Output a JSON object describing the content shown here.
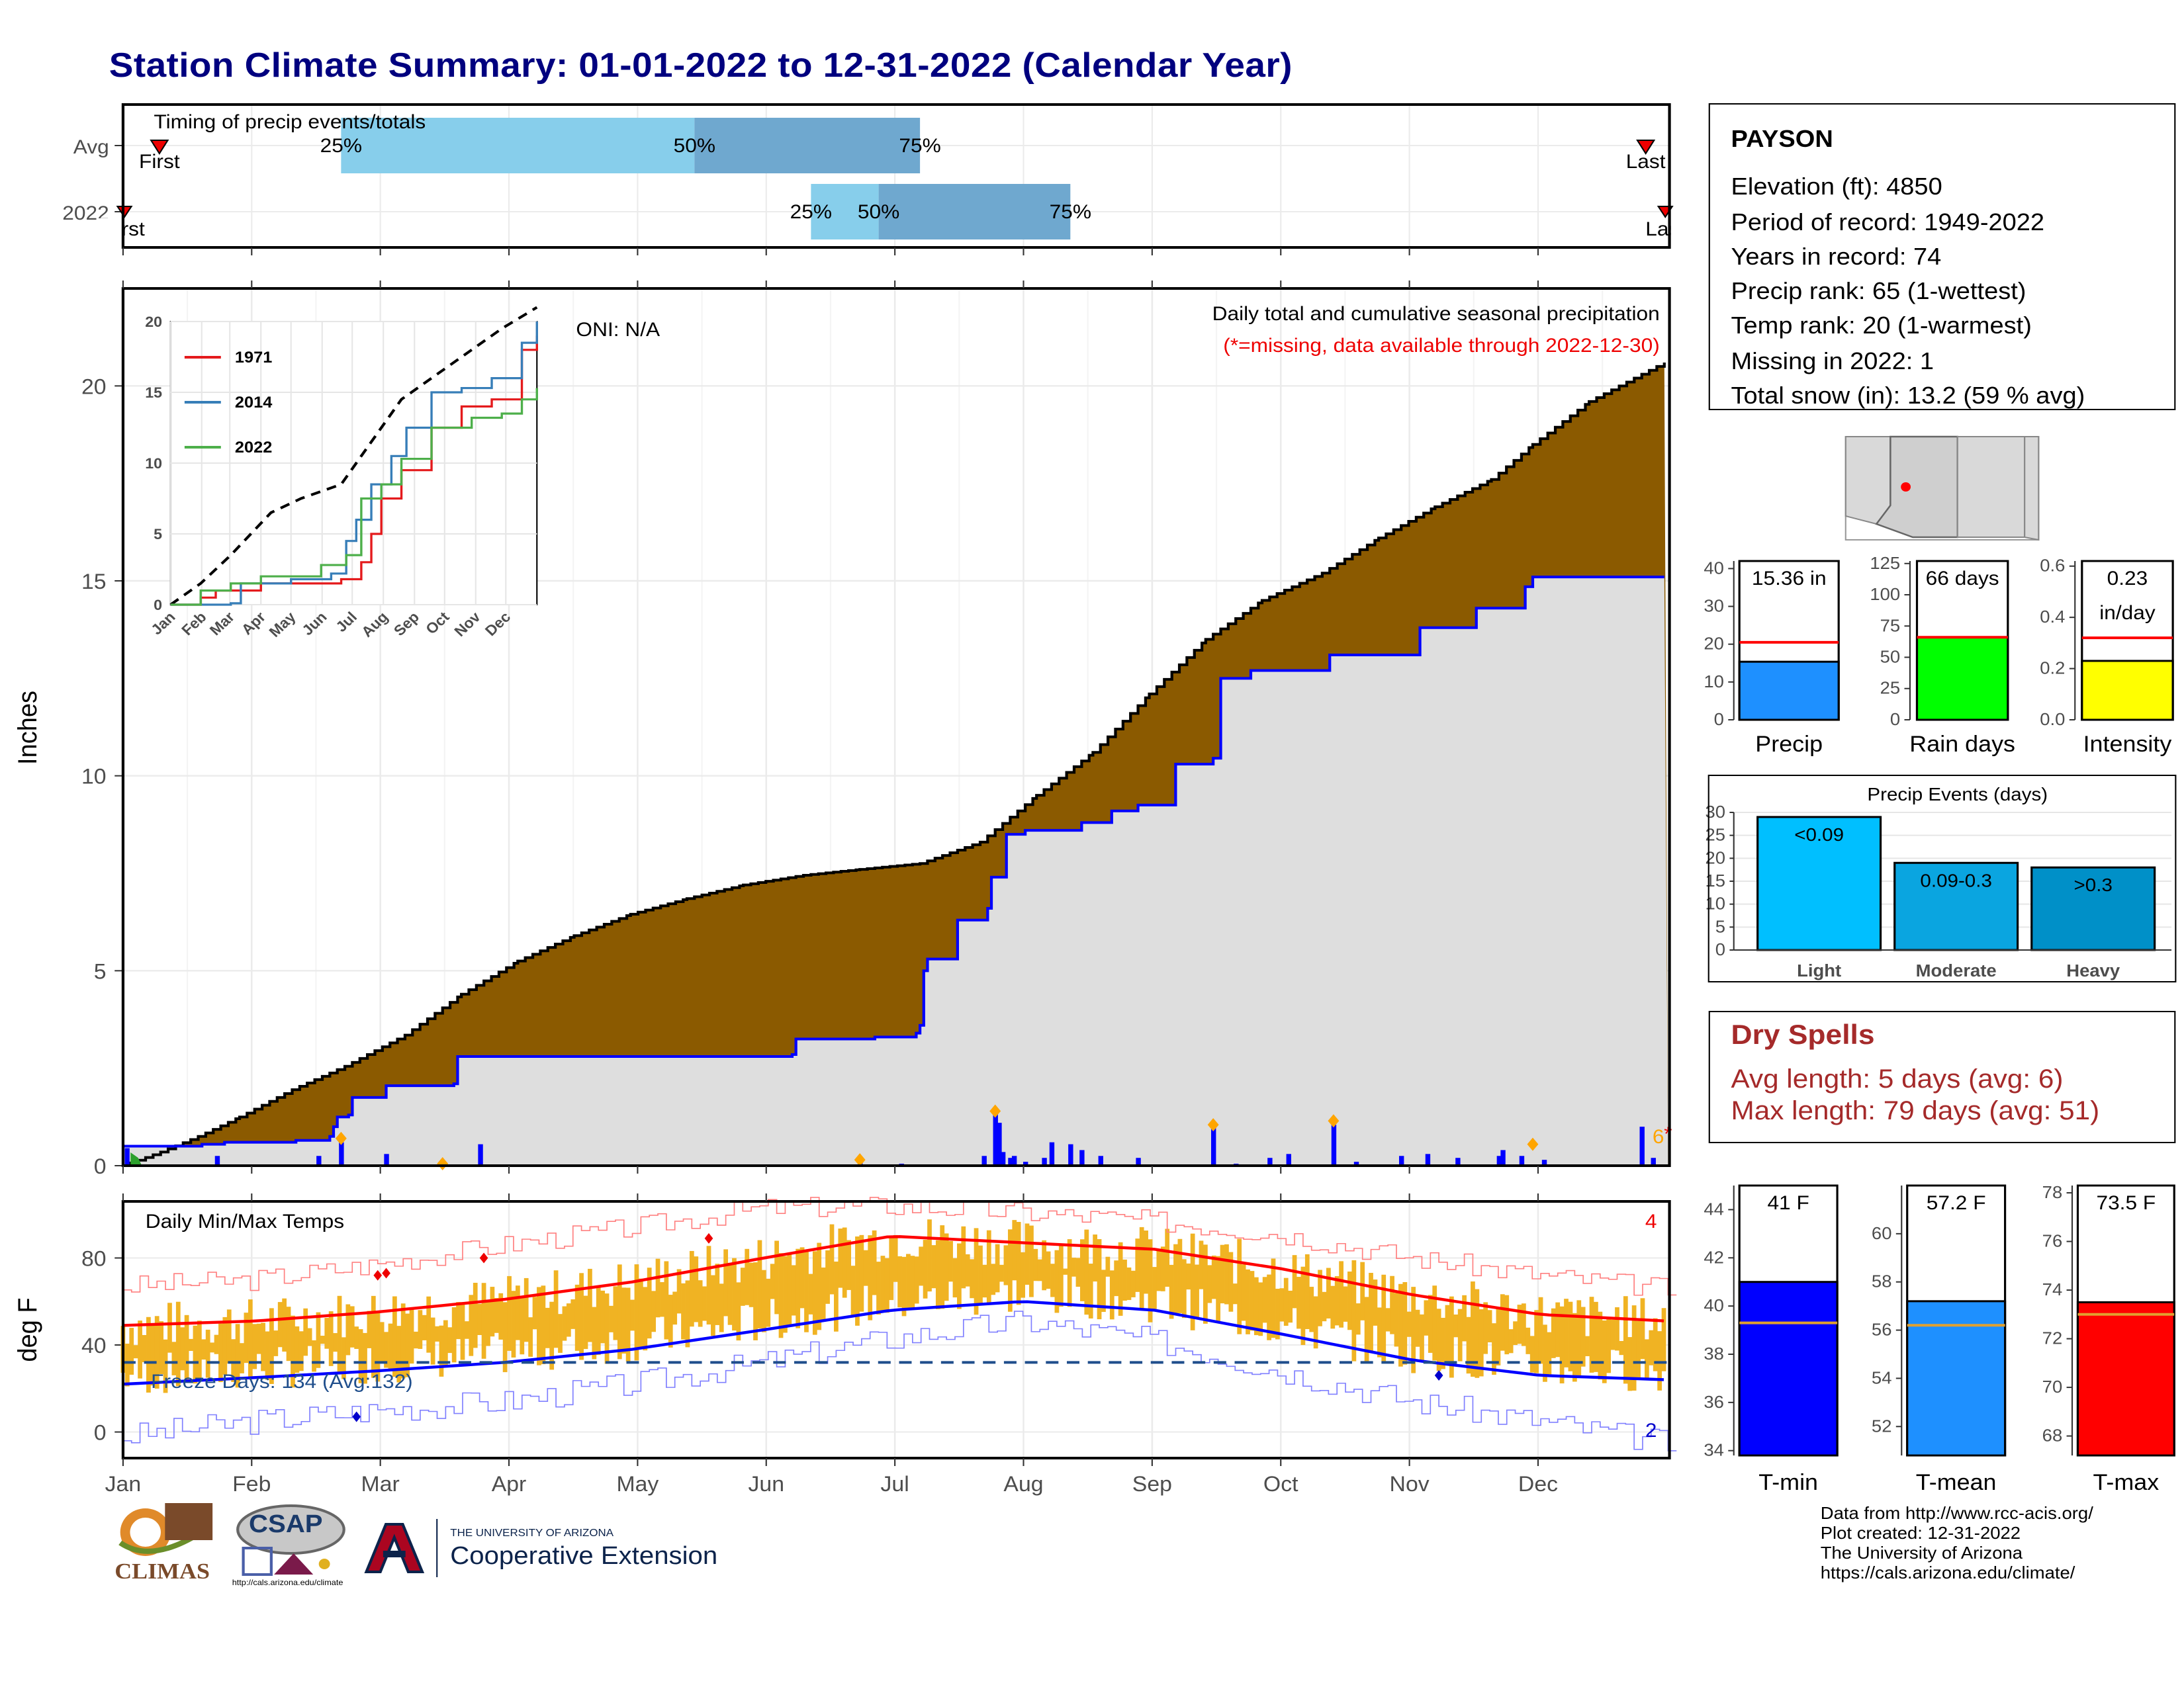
{
  "page_title": "Station Climate Summary: 01-01-2022 to 12-31-2022 (Calendar Year)",
  "station": {
    "name": "PAYSON",
    "elevation": "Elevation (ft): 4850",
    "period": "Period of record: 1949-2022",
    "years": "Years in record: 74",
    "precip_rank": "Precip rank: 65 (1-wettest)",
    "temp_rank": "Temp rank: 20 (1-warmest)",
    "missing": "Missing in 2022: 1",
    "snow": "Total snow (in): 13.2 (59 % avg)"
  },
  "dry_spells": {
    "title": "Dry Spells",
    "avg": "Avg length: 5 days (avg: 6)",
    "max": "Max length: 79 days (avg: 51)"
  },
  "footer": {
    "line1": "Data from http://www.rcc-acis.org/",
    "line2": "Plot created: 12-31-2022",
    "line3": "The University of Arizona",
    "line4": "https://cals.arizona.edu/climate/"
  },
  "logos": {
    "climas": "CLIMAS",
    "csap": "CSAP",
    "csap_url": "http://cals.arizona.edu/climate",
    "ua_small": "THE UNIVERSITY OF ARIZONA",
    "ua_big": "Cooperative Extension"
  },
  "colors": {
    "accent": "#00007f",
    "brown": "#8b5a00",
    "gray_area": "#dedede",
    "blue_line": "#0000ff",
    "temp_bar": "#f0b323",
    "light_blue": "#87ceeb",
    "steel_blue": "#6fa8cf",
    "dry_spell_red": "#a52a2a"
  },
  "chart_data": [
    {
      "id": "timing",
      "type": "bar",
      "title": "Timing of precip events/totals",
      "rows": [
        {
          "label": "Avg",
          "first": "First",
          "last": "Last",
          "p25_day": 58,
          "p50_day": 152,
          "p75_day": 212
        },
        {
          "label": "2022",
          "first": "First",
          "last": "Last",
          "p25_day": 183,
          "p50_day": 201,
          "p75_day": 252
        }
      ],
      "pct_labels": [
        "25%",
        "50%",
        "75%"
      ]
    },
    {
      "id": "cumulative_precip",
      "type": "area",
      "title": "Daily total and cumulative seasonal precipitation",
      "subtitle": "(*=missing, data available through 2022-12-30)",
      "oni": "ONI: N/A",
      "ylabel": "Inches",
      "ylim": [
        0,
        22.5
      ],
      "yticks": [
        0,
        5,
        10,
        15,
        20
      ],
      "missing_marker": "6*",
      "avg_cumulative": [
        [
          0,
          0
        ],
        [
          10,
          0.35
        ],
        [
          20,
          0.75
        ],
        [
          31,
          1.25
        ],
        [
          45,
          1.95
        ],
        [
          59,
          2.55
        ],
        [
          75,
          3.35
        ],
        [
          90,
          4.4
        ],
        [
          105,
          5.25
        ],
        [
          120,
          5.9
        ],
        [
          135,
          6.45
        ],
        [
          150,
          6.85
        ],
        [
          165,
          7.2
        ],
        [
          181,
          7.45
        ],
        [
          196,
          7.6
        ],
        [
          212,
          7.75
        ],
        [
          228,
          8.3
        ],
        [
          243,
          9.5
        ],
        [
          258,
          10.6
        ],
        [
          273,
          12.1
        ],
        [
          288,
          13.5
        ],
        [
          303,
          14.5
        ],
        [
          319,
          15.2
        ],
        [
          334,
          16.1
        ],
        [
          349,
          16.9
        ],
        [
          364,
          17.6
        ],
        [
          375,
          18.5
        ],
        [
          390,
          19.6
        ],
        [
          410,
          20.6
        ]
      ],
      "obs_cumulative": [
        [
          0,
          0.5
        ],
        [
          1,
          0.5
        ],
        [
          20,
          0.5
        ],
        [
          21,
          0.55
        ],
        [
          26,
          0.55
        ],
        [
          27,
          0.6
        ],
        [
          45,
          0.6
        ],
        [
          46,
          0.65
        ],
        [
          55,
          0.75
        ],
        [
          56,
          1.0
        ],
        [
          57,
          1.25
        ],
        [
          59,
          1.25
        ],
        [
          60,
          1.3
        ],
        [
          61,
          1.75
        ],
        [
          69,
          1.75
        ],
        [
          70,
          2.05
        ],
        [
          88,
          2.1
        ],
        [
          89,
          2.8
        ],
        [
          165,
          2.8
        ],
        [
          178,
          2.85
        ],
        [
          179,
          3.25
        ],
        [
          200,
          3.3
        ],
        [
          211,
          3.4
        ],
        [
          212,
          3.6
        ],
        [
          213,
          5.0
        ],
        [
          214,
          5.3
        ],
        [
          221,
          5.3
        ],
        [
          222,
          6.3
        ],
        [
          230,
          6.6
        ],
        [
          231,
          7.4
        ],
        [
          235,
          8.5
        ],
        [
          240,
          8.6
        ],
        [
          255,
          8.8
        ],
        [
          263,
          9.1
        ],
        [
          270,
          9.25
        ],
        [
          280,
          10.3
        ],
        [
          290,
          10.45
        ],
        [
          292,
          12.5
        ],
        [
          300,
          12.7
        ],
        [
          320,
          12.7
        ],
        [
          321,
          13.1
        ],
        [
          335,
          13.1
        ],
        [
          345,
          13.8
        ],
        [
          360,
          14.3
        ],
        [
          372,
          14.3
        ],
        [
          373,
          14.85
        ],
        [
          375,
          15.1
        ],
        [
          410,
          15.1
        ]
      ],
      "daily_precip": [
        [
          1,
          0.45
        ],
        [
          25,
          0.25
        ],
        [
          52,
          0.25
        ],
        [
          58,
          0.6
        ],
        [
          70,
          0.3
        ],
        [
          95,
          0.55
        ],
        [
          196,
          0.2
        ],
        [
          207,
          0.05
        ],
        [
          229,
          0.25
        ],
        [
          232,
          1.4
        ],
        [
          233,
          1.1
        ],
        [
          234,
          0.35
        ],
        [
          236,
          0.2
        ],
        [
          237,
          0.25
        ],
        [
          240,
          0.1
        ],
        [
          245,
          0.2
        ],
        [
          247,
          0.6
        ],
        [
          252,
          0.55
        ],
        [
          255,
          0.4
        ],
        [
          260,
          0.25
        ],
        [
          270,
          0.2
        ],
        [
          290,
          1.0
        ],
        [
          296,
          0.05
        ],
        [
          305,
          0.2
        ],
        [
          310,
          0.3
        ],
        [
          322,
          1.05
        ],
        [
          328,
          0.1
        ],
        [
          340,
          0.25
        ],
        [
          347,
          0.3
        ],
        [
          355,
          0.2
        ],
        [
          366,
          0.25
        ],
        [
          367,
          0.4
        ],
        [
          372,
          0.25
        ],
        [
          378,
          0.15
        ],
        [
          404,
          1.0
        ],
        [
          407,
          0.2
        ]
      ],
      "event_markers": [
        [
          58,
          0.7
        ],
        [
          85,
          0.05
        ],
        [
          196,
          0.15
        ],
        [
          232,
          1.4
        ],
        [
          290,
          1.05
        ],
        [
          322,
          1.15
        ],
        [
          375,
          0.55
        ]
      ]
    },
    {
      "id": "inset_cumulative",
      "type": "line",
      "ylim": [
        0,
        20
      ],
      "yticks": [
        0,
        5,
        10,
        15,
        20
      ],
      "months": [
        "Jan",
        "Feb",
        "Mar",
        "Apr",
        "May",
        "Jun",
        "Jul",
        "Aug",
        "Sep",
        "Oct",
        "Nov",
        "Dec"
      ],
      "series": [
        {
          "name": "1971",
          "color": "#e41a1c",
          "values": [
            [
              0,
              0
            ],
            [
              30,
              0.5
            ],
            [
              45,
              1.0
            ],
            [
              90,
              1.5
            ],
            [
              170,
              1.8
            ],
            [
              190,
              3.0
            ],
            [
              200,
              5.0
            ],
            [
              210,
              7.5
            ],
            [
              230,
              9.5
            ],
            [
              260,
              12.5
            ],
            [
              290,
              14.0
            ],
            [
              320,
              14.5
            ],
            [
              350,
              18.0
            ],
            [
              365,
              19.0
            ]
          ]
        },
        {
          "name": "2014",
          "color": "#377eb8",
          "values": [
            [
              0,
              0
            ],
            [
              60,
              0.1
            ],
            [
              70,
              1.5
            ],
            [
              120,
              1.8
            ],
            [
              160,
              2.2
            ],
            [
              175,
              4.5
            ],
            [
              185,
              6.0
            ],
            [
              200,
              8.5
            ],
            [
              220,
              10.5
            ],
            [
              235,
              12.5
            ],
            [
              260,
              15.0
            ],
            [
              290,
              15.3
            ],
            [
              320,
              16.0
            ],
            [
              350,
              18.5
            ],
            [
              365,
              20.0
            ]
          ]
        },
        {
          "name": "2022",
          "color": "#4daf4a",
          "values": [
            [
              0,
              0
            ],
            [
              30,
              1.0
            ],
            [
              60,
              1.5
            ],
            [
              90,
              2.0
            ],
            [
              150,
              2.8
            ],
            [
              175,
              3.5
            ],
            [
              190,
              7.5
            ],
            [
              210,
              8.5
            ],
            [
              230,
              10.3
            ],
            [
              260,
              12.5
            ],
            [
              300,
              13.2
            ],
            [
              330,
              13.5
            ],
            [
              350,
              14.5
            ],
            [
              365,
              15.3
            ]
          ]
        }
      ],
      "avg": [
        [
          0,
          0
        ],
        [
          30,
          1.5
        ],
        [
          60,
          3.5
        ],
        [
          100,
          6.5
        ],
        [
          130,
          7.5
        ],
        [
          170,
          8.5
        ],
        [
          200,
          11.5
        ],
        [
          230,
          14.5
        ],
        [
          260,
          16.0
        ],
        [
          300,
          18.0
        ],
        [
          330,
          19.5
        ],
        [
          365,
          21.0
        ]
      ]
    },
    {
      "id": "bar_precip",
      "type": "bar",
      "categories": [
        "Precip"
      ],
      "values": [
        15.36
      ],
      "label": "15.36 in",
      "avg_line": 20.5,
      "ylim": [
        0,
        42
      ],
      "yticks": [
        0,
        10,
        20,
        30,
        40
      ],
      "color": "#1e90ff"
    },
    {
      "id": "bar_raindays",
      "type": "bar",
      "categories": [
        "Rain days"
      ],
      "values": [
        66
      ],
      "label": "66 days",
      "avg_line": 66,
      "ylim": [
        0,
        127
      ],
      "yticks": [
        0,
        25,
        50,
        75,
        100,
        125
      ],
      "color": "#00ff00"
    },
    {
      "id": "bar_intensity",
      "type": "bar",
      "categories": [
        "Intensity"
      ],
      "values": [
        0.23
      ],
      "label": "0.23 in/day",
      "label_line1": "0.23",
      "label_line2": "in/day",
      "avg_line": 0.32,
      "ylim": [
        0,
        0.62
      ],
      "yticks": [
        0.0,
        0.2,
        0.4,
        0.6
      ],
      "color": "#ffff00"
    },
    {
      "id": "precip_events",
      "type": "bar",
      "title": "Precip Events (days)",
      "categories": [
        "Light",
        "Moderate",
        "Heavy"
      ],
      "bar_labels": [
        "<0.09",
        "0.09-0.3",
        ">0.3"
      ],
      "values": [
        29,
        19,
        18
      ],
      "ylim": [
        0,
        30
      ],
      "yticks": [
        0,
        5,
        10,
        15,
        20,
        25,
        30
      ],
      "colors": [
        "#00bfff",
        "#0aa5e0",
        "#0090c8"
      ]
    },
    {
      "id": "daily_temps",
      "type": "line",
      "title": "Daily Min/Max Temps",
      "ylabel": "deg F",
      "ylim": [
        -12,
        106
      ],
      "yticks": [
        0,
        40,
        80
      ],
      "freeze_text": "Freeze Days: 134 (Avg:132)",
      "freeze_line": 32,
      "top_count": "4",
      "bottom_count": "2",
      "months": [
        "Jan",
        "Feb",
        "Mar",
        "Apr",
        "May",
        "Jun",
        "Jul",
        "Aug",
        "Sep",
        "Oct",
        "Nov",
        "Dec"
      ],
      "avg_max": [
        [
          0,
          49
        ],
        [
          31,
          51
        ],
        [
          59,
          55
        ],
        [
          90,
          61
        ],
        [
          120,
          69
        ],
        [
          151,
          80
        ],
        [
          181,
          90
        ],
        [
          212,
          87
        ],
        [
          243,
          84
        ],
        [
          273,
          75
        ],
        [
          304,
          63
        ],
        [
          334,
          54
        ],
        [
          364,
          51
        ]
      ],
      "avg_min": [
        [
          0,
          22
        ],
        [
          31,
          25
        ],
        [
          59,
          28
        ],
        [
          90,
          32
        ],
        [
          120,
          38
        ],
        [
          151,
          47
        ],
        [
          181,
          56
        ],
        [
          212,
          60
        ],
        [
          243,
          56
        ],
        [
          273,
          45
        ],
        [
          304,
          33
        ],
        [
          334,
          26
        ],
        [
          364,
          24
        ]
      ],
      "record_max": [
        [
          0,
          67
        ],
        [
          31,
          70
        ],
        [
          59,
          77
        ],
        [
          90,
          86
        ],
        [
          120,
          94
        ],
        [
          151,
          103
        ],
        [
          181,
          104
        ],
        [
          212,
          101
        ],
        [
          243,
          97
        ],
        [
          273,
          91
        ],
        [
          304,
          80
        ],
        [
          334,
          72
        ],
        [
          364,
          66
        ]
      ],
      "record_min": [
        [
          0,
          -2
        ],
        [
          31,
          5
        ],
        [
          59,
          10
        ],
        [
          90,
          14
        ],
        [
          120,
          22
        ],
        [
          151,
          32
        ],
        [
          181,
          43
        ],
        [
          212,
          51
        ],
        [
          243,
          42
        ],
        [
          273,
          28
        ],
        [
          304,
          14
        ],
        [
          334,
          5
        ],
        [
          364,
          -5
        ]
      ]
    },
    {
      "id": "tmin",
      "type": "bar",
      "categories": [
        "T-min"
      ],
      "values": [
        41
      ],
      "label": "41 F",
      "avg_line": 39.3,
      "ylim": [
        33.8,
        45
      ],
      "yticks": [
        34,
        36,
        38,
        40,
        42,
        44
      ],
      "color": "#0000ff"
    },
    {
      "id": "tmean",
      "type": "bar",
      "categories": [
        "T-mean"
      ],
      "values": [
        57.2
      ],
      "label": "57.2 F",
      "avg_line": 56.2,
      "ylim": [
        50.8,
        62
      ],
      "yticks": [
        52,
        54,
        56,
        58,
        60
      ],
      "color": "#1e90ff"
    },
    {
      "id": "tmax",
      "type": "bar",
      "categories": [
        "T-max"
      ],
      "values": [
        73.5
      ],
      "label": "73.5 F",
      "avg_line": 73.0,
      "ylim": [
        67.2,
        78.3
      ],
      "yticks": [
        68,
        70,
        72,
        74,
        76,
        78
      ],
      "color": "#ff0000"
    }
  ]
}
